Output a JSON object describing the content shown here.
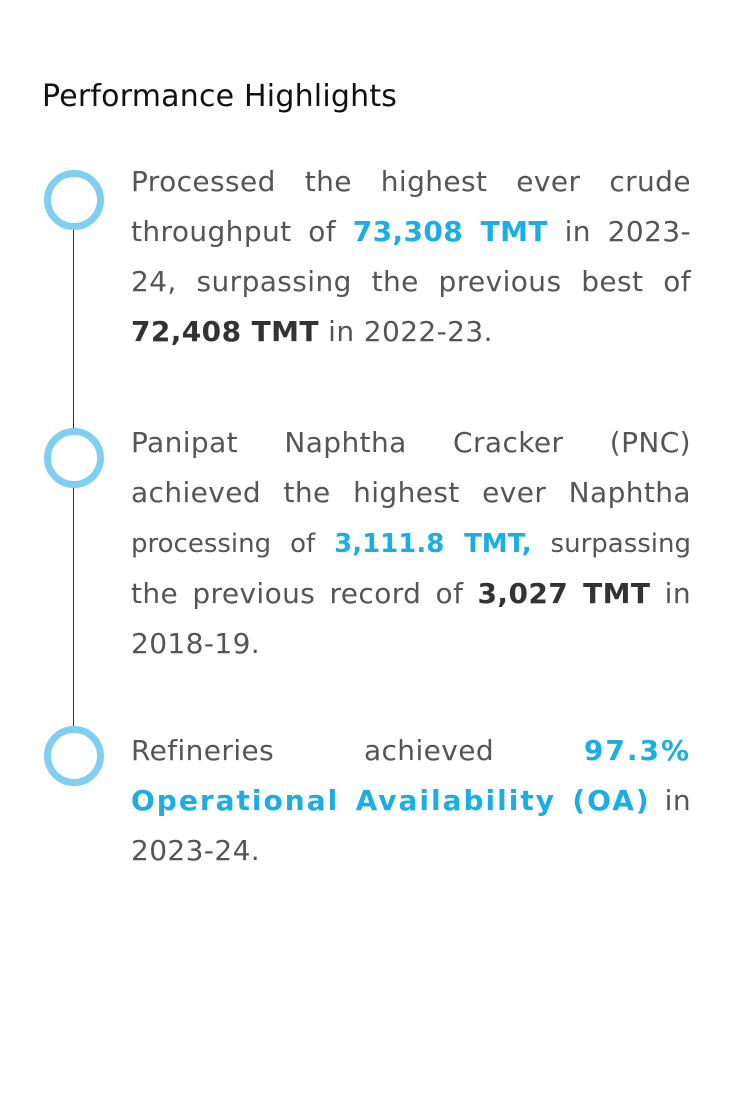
{
  "title": "Performance Highlights",
  "accent_color": "#1aaee5",
  "node_color": "#7fcff0",
  "highlights": [
    {
      "text_1": "Processed the highest ever crude throughput of ",
      "value_1": "73,308 TMT",
      "text_2": " in 2023-24, surpassing the previous best of ",
      "value_2": "72,408 TMT",
      "text_3": " in 2022-23."
    },
    {
      "text_1": "Panipat Naphtha Cracker (PNC) achieved the highest ever Naphtha ",
      "text_1b": "processing of ",
      "value_1": "3,111.8 TMT,",
      "text_2": " surpassing",
      "text_2b": " the previous record of ",
      "value_2": "3,027 TMT",
      "text_3": " in 2018-19."
    },
    {
      "text_1": "Refineries achieved ",
      "value_1": "97.3% Operational Availability (OA)",
      "text_2": " in 2023-24."
    }
  ]
}
